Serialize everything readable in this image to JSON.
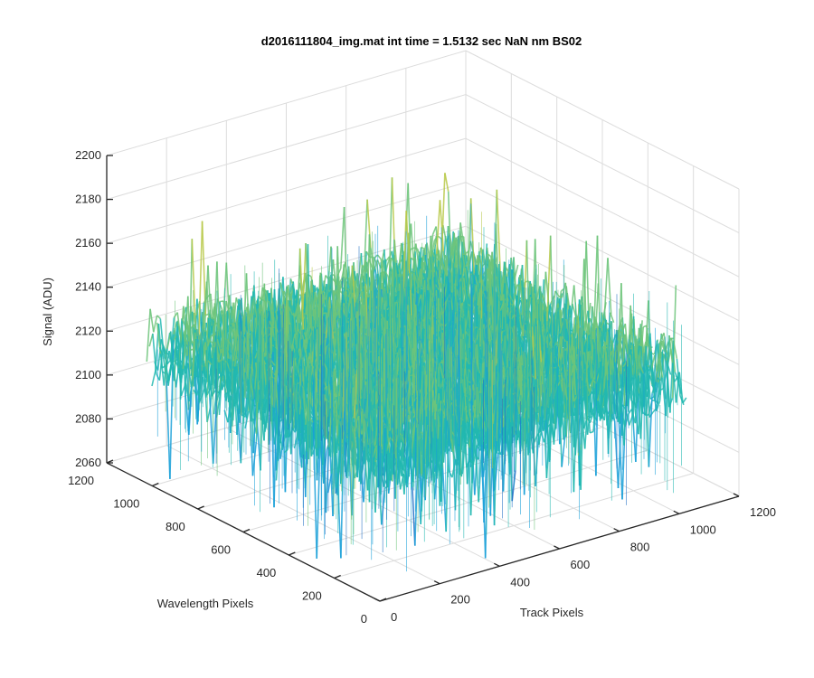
{
  "chart_data": {
    "type": "surface",
    "title": "d2016111804_img.mat int time = 1.5132 sec  NaN nm BS02",
    "xlabel": "Track Pixels",
    "ylabel": "Wavelength Pixels",
    "zlabel": "Signal (ADU)",
    "xlim": [
      0,
      1200
    ],
    "ylim": [
      0,
      1200
    ],
    "zlim": [
      2060,
      2200
    ],
    "xticks": [
      "0",
      "200",
      "400",
      "600",
      "800",
      "1000",
      "1200"
    ],
    "yticks": [
      "0",
      "200",
      "400",
      "600",
      "800",
      "1000",
      "1200"
    ],
    "zticks": [
      "2060",
      "2080",
      "2100",
      "2120",
      "2140",
      "2160",
      "2180",
      "2200"
    ],
    "grid": true,
    "colormap": [
      "#1f6fc4",
      "#1aa0d8",
      "#22b8b0",
      "#6dc47a",
      "#b8c94a",
      "#e8c93a"
    ],
    "surface_summary": {
      "x_extent": [
        0,
        1024
      ],
      "y_extent": [
        0,
        1024
      ],
      "mean_signal": 2122,
      "noise_range": [
        2060,
        2190
      ]
    }
  }
}
